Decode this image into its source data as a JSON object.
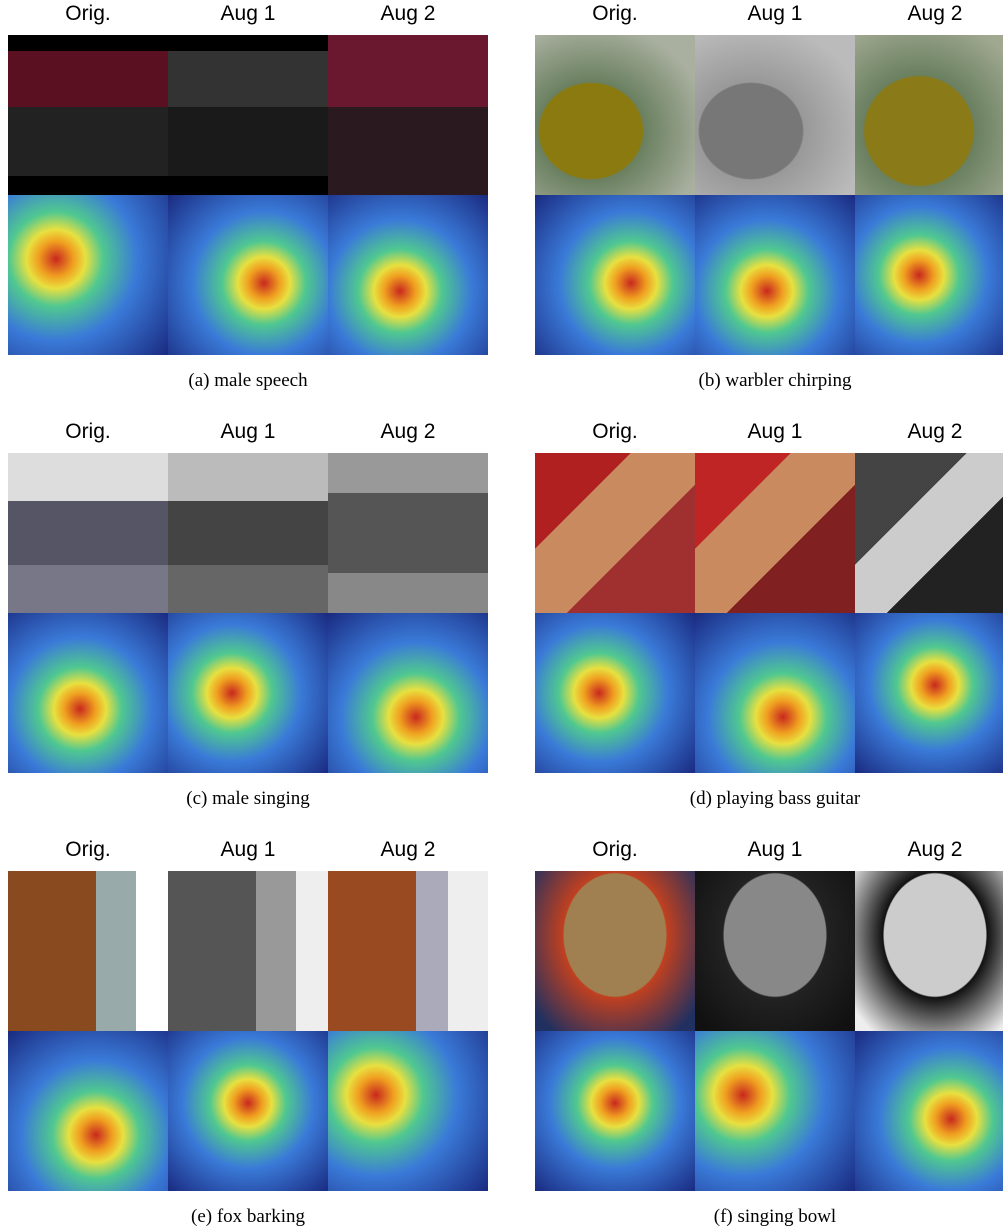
{
  "panels": [
    {
      "headers": [
        "Orig.",
        "Aug 1",
        "Aug 2"
      ],
      "caption": "(a) male speech"
    },
    {
      "headers": [
        "Orig.",
        "Aug 1",
        "Aug 2"
      ],
      "caption": "(b) warbler chirping"
    },
    {
      "headers": [
        "Orig.",
        "Aug 1",
        "Aug 2"
      ],
      "caption": "(c) male singing"
    },
    {
      "headers": [
        "Orig.",
        "Aug 1",
        "Aug 2"
      ],
      "caption": "(d) playing bass guitar"
    },
    {
      "headers": [
        "Orig.",
        "Aug 1",
        "Aug 2"
      ],
      "caption": "(e) fox barking"
    },
    {
      "headers": [
        "Orig.",
        "Aug 1",
        "Aug 2"
      ],
      "caption": "(f) singing bowl"
    }
  ]
}
